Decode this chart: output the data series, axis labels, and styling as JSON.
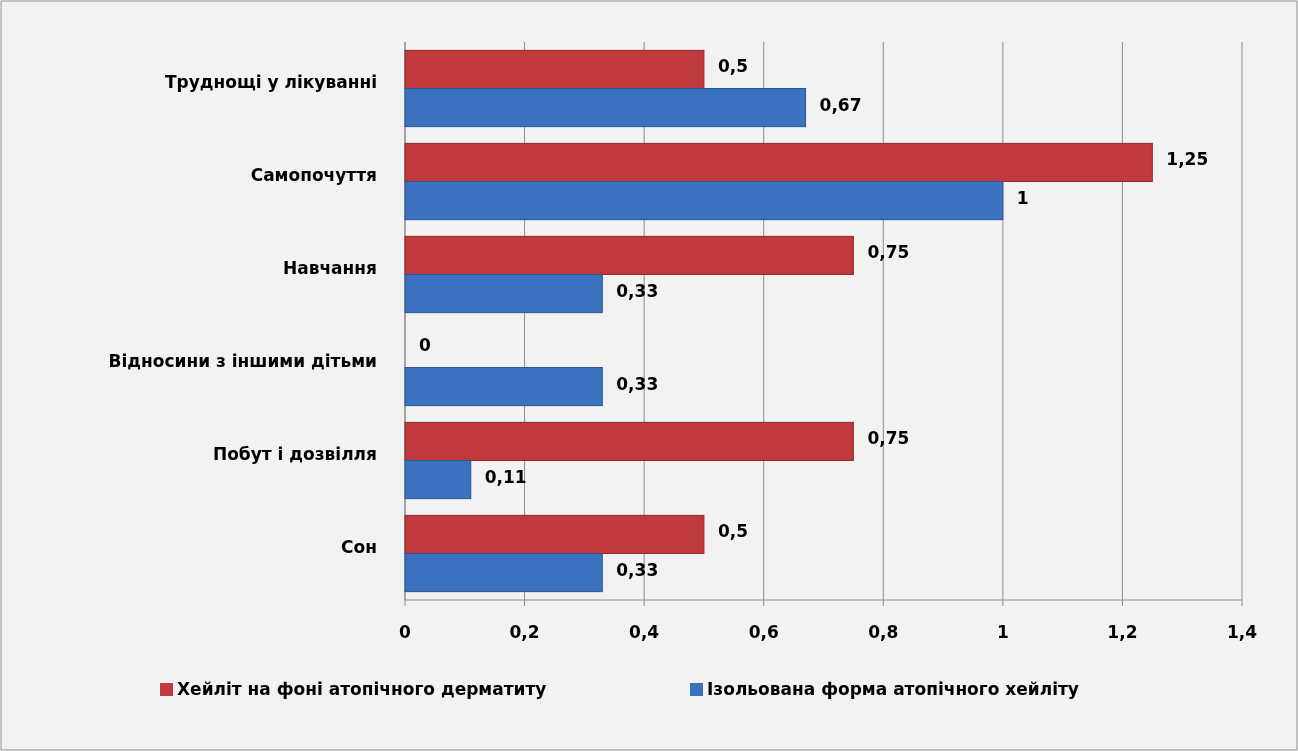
{
  "chart_data": {
    "type": "bar",
    "orientation": "horizontal",
    "categories": [
      "Труднощі у лікуванні",
      "Самопочуття",
      "Навчання",
      "Відносини з іншими дітьми",
      "Побут і дозвілля",
      "Сон"
    ],
    "series": [
      {
        "name": "Хейліт на фоні атопічного дерматиту",
        "color": "#c0393b",
        "values": [
          0.5,
          1.25,
          0.75,
          0,
          0.75,
          0.5
        ],
        "value_labels": [
          "0,5",
          "1,25",
          "0,75",
          "0",
          "0,75",
          "0,5"
        ]
      },
      {
        "name": "Ізольована форма атопічного хейліту",
        "color": "#3a72c0",
        "values": [
          0.67,
          1,
          0.33,
          0.33,
          0.11,
          0.33
        ],
        "value_labels": [
          "0,67",
          "1",
          "0,33",
          "0,33",
          "0,11",
          "0,33"
        ]
      }
    ],
    "xlim": [
      0,
      1.4
    ],
    "xticks": [
      0,
      {
        "value": 0.2,
        "label": "0,2"
      },
      {
        "value": 0.4,
        "label": "0,4"
      },
      {
        "value": 0.6,
        "label": "0,6"
      },
      {
        "value": 0.8,
        "label": "0,8"
      },
      1,
      {
        "value": 1.2,
        "label": "1,2"
      },
      {
        "value": 1.4,
        "label": "1,4"
      }
    ],
    "grid": "x",
    "legend": "bottom"
  }
}
